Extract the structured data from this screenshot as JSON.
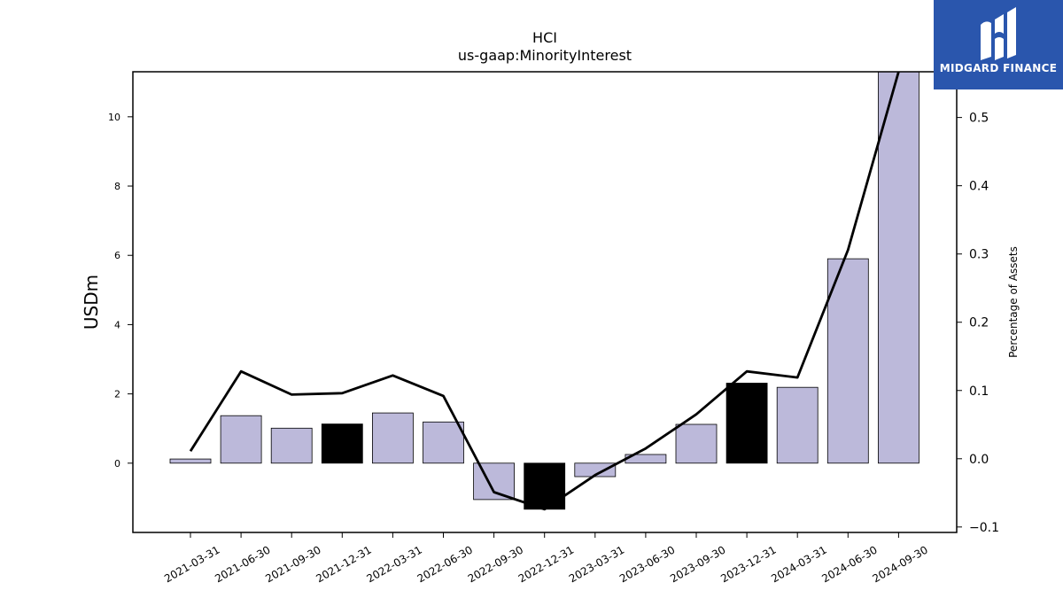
{
  "brand": {
    "name": "MIDGARD FINANCE",
    "bg_color": "#2a56ad",
    "icon": "midgard-logo-icon"
  },
  "chart_data": {
    "type": "bar",
    "title": "HCI",
    "subtitle": "us-gaap:MinorityInterest",
    "ylabel": "USDm",
    "y2label": "Percentage of Assets",
    "categories": [
      "2021-03-31",
      "2021-06-30",
      "2021-09-30",
      "2021-12-31",
      "2022-03-31",
      "2022-06-30",
      "2022-09-30",
      "2022-12-31",
      "2023-03-31",
      "2023-06-30",
      "2023-09-30",
      "2023-12-31",
      "2024-03-31",
      "2024-06-30",
      "2024-09-30"
    ],
    "series": [
      {
        "values": [
          0.12,
          1.37,
          1.01,
          1.13,
          1.45,
          1.19,
          -1.05,
          -1.33,
          -0.39,
          0.25,
          1.12,
          2.31,
          2.19,
          5.9,
          11.3
        ]
      },
      {
        "axis": "right",
        "values": [
          0.011,
          0.128,
          0.094,
          0.096,
          0.122,
          0.092,
          -0.049,
          -0.074,
          -0.024,
          0.015,
          0.065,
          0.128,
          0.119,
          0.306,
          0.567
        ]
      }
    ],
    "highlight_categories": [
      "2021-12-31",
      "2022-12-31",
      "2023-12-31"
    ],
    "colors": {
      "bar": "#bcb9da",
      "bar_highlight": "#000000",
      "line": "#000000"
    },
    "ylim": [
      -2.0,
      11.3
    ],
    "y2lim": [
      -0.108,
      0.567
    ],
    "yticks": [
      0,
      2,
      4,
      6,
      8,
      10
    ],
    "y2ticks": [
      "−0.1",
      "0.0",
      "0.1",
      "0.2",
      "0.3",
      "0.4",
      "0.5"
    ],
    "y2tick_values": [
      -0.1,
      0.0,
      0.1,
      0.2,
      0.3,
      0.4,
      0.5
    ],
    "grid": false
  }
}
